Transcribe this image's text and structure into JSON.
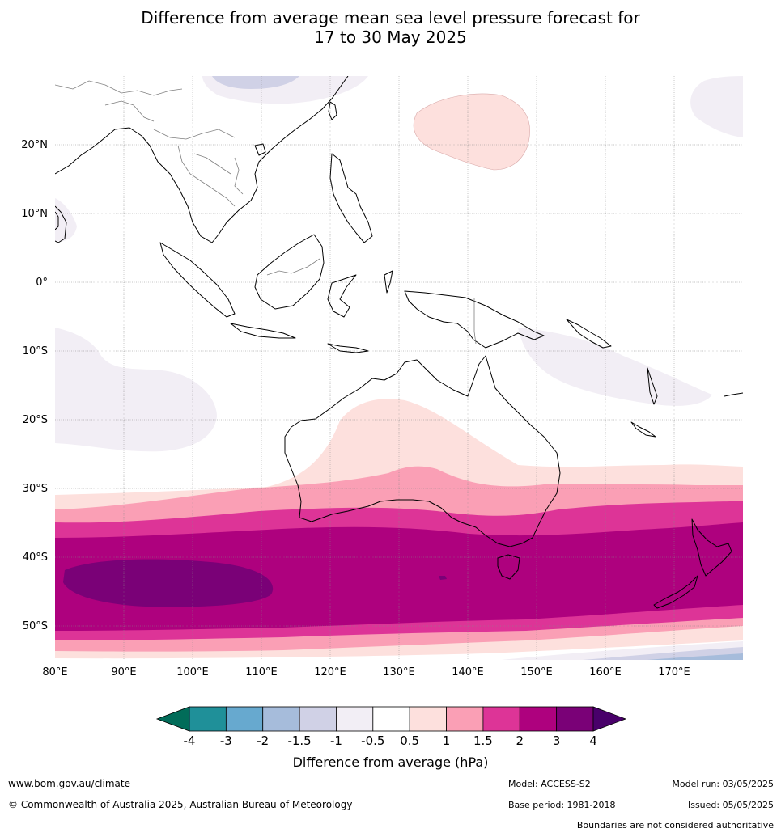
{
  "title": {
    "line1": "Difference from average mean sea level pressure forecast for",
    "line2": "17 to 30 May 2025"
  },
  "map": {
    "lon_ticks": [
      "80°E",
      "90°E",
      "100°E",
      "110°E",
      "120°E",
      "130°E",
      "140°E",
      "150°E",
      "160°E",
      "170°E"
    ],
    "lat_ticks": [
      "20°N",
      "10°N",
      "0°",
      "10°S",
      "20°S",
      "30°S",
      "40°S",
      "50°S"
    ],
    "lon_range": [
      80,
      180
    ],
    "lat_range": [
      -55,
      30
    ],
    "grid": true,
    "land_colour": "#ffffff",
    "coast_colour": "#000000",
    "border_colour": "#808080"
  },
  "colorbar": {
    "ticks": [
      "-4",
      "-3",
      "-2",
      "-1.5",
      "-1",
      "-0.5",
      "0.5",
      "1",
      "1.5",
      "2",
      "3",
      "4"
    ],
    "colors": [
      "#1f9099",
      "#67a9cf",
      "#a6bcdb",
      "#d0d1e6",
      "#f2eef5",
      "#ffffff",
      "#fde0dd",
      "#fa9fb5",
      "#dd3497",
      "#ae017e",
      "#7a0177"
    ],
    "under_color": "#016c59",
    "over_color": "#49006a",
    "label": "Difference from average (hPa)"
  },
  "footer": {
    "website": "www.bom.gov.au/climate",
    "copyright": "© Commonwealth of Australia 2025, Australian Bureau of Meteorology",
    "model": "Model: ACCESS-S2",
    "base_period": "Base period: 1981-2018",
    "model_run": "Model run: 03/05/2025",
    "issued": "Issued: 05/05/2025",
    "disclaimer": "Boundaries are not considered authoritative"
  }
}
